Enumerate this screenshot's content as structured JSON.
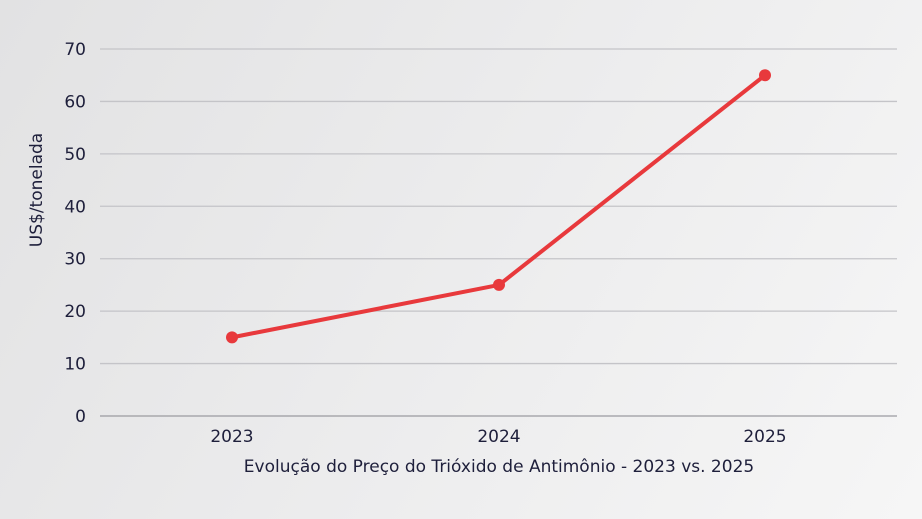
{
  "chart_data": {
    "type": "line",
    "title": "",
    "xlabel": "Evolução do Preço do Trióxido de Antimônio - 2023 vs. 2025",
    "ylabel": "US$/tonelada",
    "categories": [
      "2023",
      "2024",
      "2025"
    ],
    "series": [
      {
        "values": [
          15,
          25,
          65
        ],
        "color": "#e8393c"
      }
    ],
    "ylim": [
      0,
      70
    ],
    "yticks": [
      0,
      10,
      20,
      30,
      40,
      50,
      60,
      70
    ],
    "grid": true,
    "legend": "none"
  }
}
